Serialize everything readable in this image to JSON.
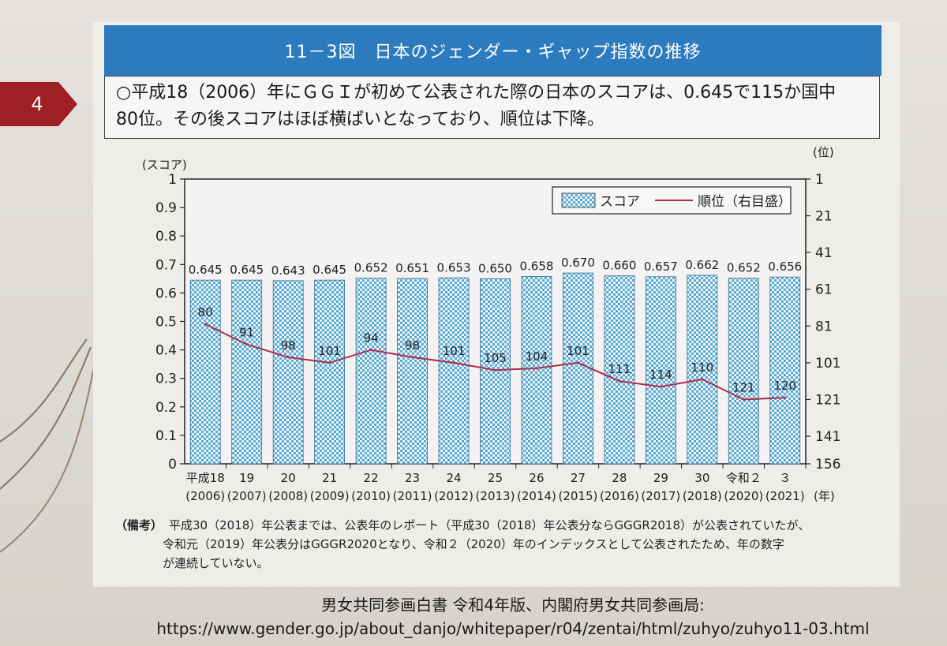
{
  "page": {
    "number": "4"
  },
  "figure": {
    "title": "11－3図　日本のジェンダー・ギャップ指数の推移",
    "summary_line1": "○平成18（2006）年にＧＧＩが初めて公表された際の日本のスコアは、0.645で115か国中",
    "summary_line2": "80位。その後スコアはほぼ横ばいとなっており、順位は下降。"
  },
  "chart_data": {
    "type": "bar",
    "categories": [
      {
        "era": "平成18",
        "year": "(2006)"
      },
      {
        "era": "19",
        "year": "(2007)"
      },
      {
        "era": "20",
        "year": "(2008)"
      },
      {
        "era": "21",
        "year": "(2009)"
      },
      {
        "era": "22",
        "year": "(2010)"
      },
      {
        "era": "23",
        "year": "(2011)"
      },
      {
        "era": "24",
        "year": "(2012)"
      },
      {
        "era": "25",
        "year": "(2013)"
      },
      {
        "era": "26",
        "year": "(2014)"
      },
      {
        "era": "27",
        "year": "(2015)"
      },
      {
        "era": "28",
        "year": "(2016)"
      },
      {
        "era": "29",
        "year": "(2017)"
      },
      {
        "era": "30",
        "year": "(2018)"
      },
      {
        "era": "令和２",
        "year": "(2020)"
      },
      {
        "era": "３",
        "year": "(2021)"
      }
    ],
    "series": [
      {
        "name": "スコア",
        "type": "bar",
        "axis": "left",
        "values": [
          0.645,
          0.645,
          0.643,
          0.645,
          0.652,
          0.651,
          0.653,
          0.65,
          0.658,
          0.67,
          0.66,
          0.657,
          0.662,
          0.652,
          0.656
        ],
        "labels": [
          "0.645",
          "0.645",
          "0.643",
          "0.645",
          "0.652",
          "0.651",
          "0.653",
          "0.650",
          "0.658",
          "0.670",
          "0.660",
          "0.657",
          "0.662",
          "0.652",
          "0.656"
        ]
      },
      {
        "name": "順位（右目盛）",
        "type": "line",
        "axis": "right",
        "values": [
          80,
          91,
          98,
          101,
          94,
          98,
          101,
          105,
          104,
          101,
          111,
          114,
          110,
          121,
          120
        ]
      }
    ],
    "ylabel_left": "(スコア)",
    "ylabel_right": "(位)",
    "xlabel": "(年)",
    "ylim_left": [
      0,
      1
    ],
    "ylim_right": [
      1,
      156
    ],
    "right_axis_inverted": true,
    "yticks_left": [
      "0",
      "0.1",
      "0.2",
      "0.3",
      "0.4",
      "0.5",
      "0.6",
      "0.7",
      "0.8",
      "0.9",
      "1"
    ],
    "yticks_right": [
      "1",
      "21",
      "41",
      "61",
      "81",
      "101",
      "121",
      "141",
      "156"
    ],
    "legend_position": "top-right",
    "grid": false,
    "colors": {
      "bar_fill": "#5aaad6",
      "bar_pattern": "#f2f6f8",
      "line": "#b02a4a",
      "axis": "#222222"
    }
  },
  "note": {
    "tag": "（備考）",
    "line1": "平成30（2018）年公表までは、公表年のレポート（平成30（2018）年公表分ならGGGR2018）が公表されていたが、",
    "line2": "令和元（2019）年公表分はGGGR2020となり、令和２（2020）年のインデックスとして公表されたため、年の数字",
    "line3": "が連続していない。"
  },
  "source": {
    "line1": "男女共同参画白書 令和4年版、内閣府男女共同参画局:",
    "line2": "https://www.gender.go.jp/about_danjo/whitepaper/r04/zentai/html/zuhyo/zuhyo11-03.html"
  }
}
